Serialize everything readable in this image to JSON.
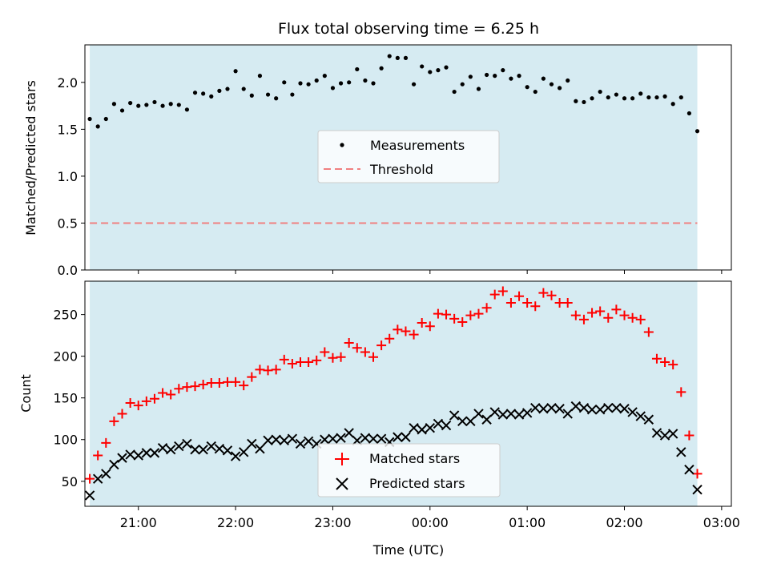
{
  "chart_data": {
    "title": "Flux total observing time = 6.25 h",
    "xlabel": "Time (UTC)",
    "x_ticks": [
      "21:00",
      "22:00",
      "23:00",
      "00:00",
      "01:00",
      "02:00",
      "03:00"
    ],
    "x_range_hours": [
      20.45,
      27.1
    ],
    "shaded_span_hours": [
      20.5,
      26.75
    ],
    "colors": {
      "shade": "#add8e6",
      "measurement": "#000000",
      "threshold": "#f08080",
      "matched": "#ff0000",
      "predicted": "#000000"
    },
    "panels": [
      {
        "type": "scatter",
        "ylabel": "Matched/Predicted stars",
        "ylim": [
          0.0,
          2.4
        ],
        "y_ticks": [
          "0.0",
          "0.5",
          "1.0",
          "1.5",
          "2.0"
        ],
        "y_tick_values": [
          0.0,
          0.5,
          1.0,
          1.5,
          2.0
        ],
        "threshold": 0.5,
        "legend_position": "center",
        "legend": [
          "Measurements",
          "Threshold"
        ],
        "series": [
          {
            "name": "Measurements",
            "values": [
              1.61,
              1.53,
              1.61,
              1.77,
              1.7,
              1.78,
              1.75,
              1.76,
              1.79,
              1.75,
              1.77,
              1.76,
              1.71,
              1.89,
              1.88,
              1.85,
              1.91,
              1.93,
              2.12,
              1.93,
              1.86,
              2.07,
              1.87,
              1.83,
              2.0,
              1.87,
              1.99,
              1.98,
              2.02,
              2.07,
              1.94,
              1.99,
              2.0,
              2.14,
              2.02,
              1.99,
              2.15,
              2.28,
              2.26,
              2.26,
              1.98,
              2.17,
              2.11,
              2.13,
              2.16,
              1.9,
              1.98,
              2.06,
              1.93,
              2.08,
              2.07,
              2.13,
              2.04,
              2.07,
              1.95,
              1.9,
              2.04,
              1.98,
              1.94,
              2.02,
              1.8,
              1.79,
              1.83,
              1.9,
              1.84,
              1.87,
              1.83,
              1.83,
              1.88,
              1.84,
              1.84,
              1.85,
              1.77,
              1.84,
              1.67,
              1.48
            ]
          }
        ]
      },
      {
        "type": "scatter",
        "ylabel": "Count",
        "ylim": [
          20,
          290
        ],
        "y_ticks": [
          "50",
          "100",
          "150",
          "200",
          "250"
        ],
        "y_tick_values": [
          50,
          100,
          150,
          200,
          250
        ],
        "legend_position": "lower center",
        "legend": [
          "Matched stars",
          "Predicted stars"
        ],
        "series": [
          {
            "name": "Matched stars",
            "values": [
              53,
              81,
              96,
              122,
              131,
              144,
              141,
              146,
              149,
              156,
              154,
              161,
              163,
              164,
              166,
              168,
              168,
              169,
              169,
              165,
              175,
              184,
              183,
              184,
              196,
              191,
              193,
              193,
              195,
              205,
              198,
              199,
              216,
              210,
              205,
              199,
              213,
              221,
              232,
              230,
              226,
              240,
              236,
              251,
              250,
              245,
              241,
              249,
              251,
              258,
              274,
              278,
              264,
              272,
              264,
              260,
              276,
              273,
              264,
              264,
              249,
              244,
              252,
              254,
              246,
              256,
              249,
              246,
              244,
              229,
              197,
              193,
              190,
              157,
              105,
              59
            ]
          },
          {
            "name": "Predicted stars",
            "values": [
              33,
              53,
              59,
              70,
              78,
              82,
              81,
              84,
              84,
              90,
              88,
              92,
              95,
              88,
              88,
              92,
              89,
              87,
              80,
              85,
              95,
              89,
              99,
              100,
              99,
              101,
              95,
              98,
              95,
              100,
              101,
              102,
              108,
              99,
              102,
              101,
              101,
              97,
              103,
              103,
              114,
              112,
              114,
              119,
              117,
              129,
              122,
              122,
              131,
              124,
              133,
              130,
              131,
              130,
              132,
              138,
              137,
              138,
              137,
              131,
              140,
              138,
              136,
              136,
              138,
              138,
              137,
              133,
              128,
              124,
              108,
              105,
              107,
              85,
              64,
              40
            ]
          }
        ]
      }
    ],
    "time_start_hours": 20.5,
    "time_step_hours": 0.083333
  }
}
